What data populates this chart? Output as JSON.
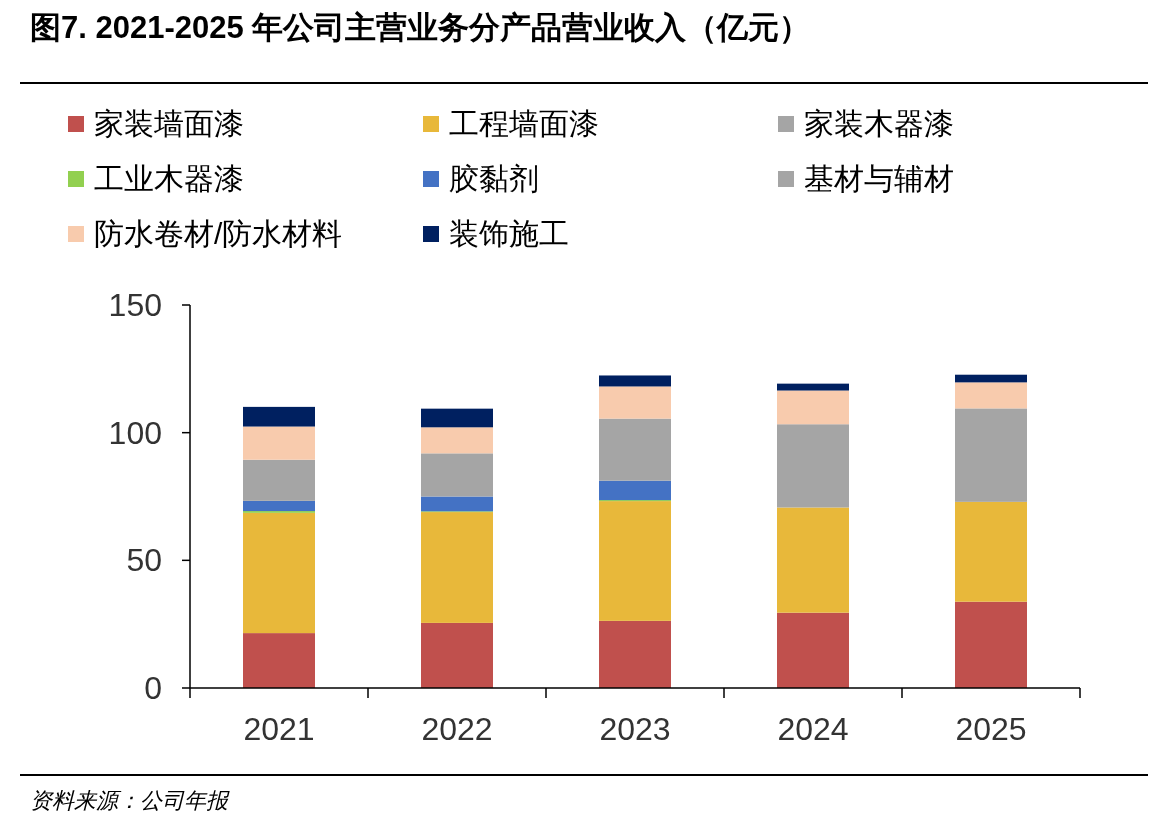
{
  "chart_data": {
    "type": "bar",
    "stacked": true,
    "title": "图7. 2021-2025 年公司主营业务分产品营业收入（亿元）",
    "annotations": [
      "资料来源：公司年报"
    ],
    "categories": [
      "2021",
      "2022",
      "2023",
      "2024",
      "2025"
    ],
    "series": [
      {
        "name": "家装墙面漆",
        "color": "#c0504d",
        "values": [
          21.5,
          25.5,
          26.3,
          29.5,
          33.8
        ]
      },
      {
        "name": "工程墙面漆",
        "color": "#e8b83a",
        "values": [
          47.1,
          43.4,
          46.9,
          41.2,
          39.1
        ]
      },
      {
        "name": "家装木器漆",
        "color": "#a5a5a5",
        "values": [
          null,
          null,
          null,
          null,
          null
        ]
      },
      {
        "name": "工业木器漆",
        "color": "#92d050",
        "values": [
          0.7,
          0.3,
          0.4,
          null,
          null
        ]
      },
      {
        "name": "胶黏剂",
        "color": "#4472c4",
        "values": [
          4.0,
          5.8,
          7.6,
          null,
          null
        ]
      },
      {
        "name": "基材与辅材",
        "color": "#a5a5a5",
        "values": [
          16.1,
          16.9,
          24.3,
          32.6,
          36.6
        ]
      },
      {
        "name": "防水卷材/防水材料",
        "color": "#f8cbad",
        "values": [
          13.0,
          10.2,
          12.6,
          13.2,
          10.2
        ]
      },
      {
        "name": "装饰施工",
        "color": "#002060",
        "values": [
          7.7,
          7.3,
          4.3,
          2.7,
          3.0
        ]
      }
    ],
    "ylim": [
      0,
      150
    ],
    "yticks": [
      0,
      50,
      100,
      150
    ],
    "grid": false,
    "legend": "top"
  }
}
